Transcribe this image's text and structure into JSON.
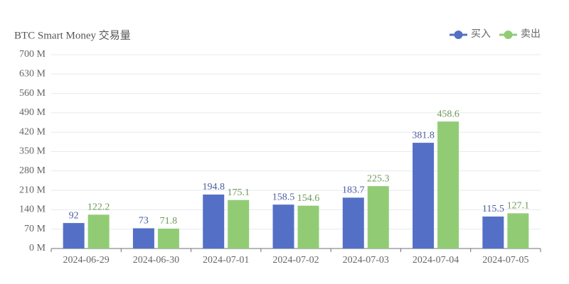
{
  "chart_data": {
    "type": "bar",
    "title": "BTC Smart Money 交易量",
    "categories": [
      "2024-06-29",
      "2024-06-30",
      "2024-07-01",
      "2024-07-02",
      "2024-07-03",
      "2024-07-04",
      "2024-07-05"
    ],
    "series": [
      {
        "name": "买入",
        "color": "#5470c6",
        "values": [
          92,
          73,
          194.8,
          158.5,
          183.7,
          381.8,
          115.5
        ]
      },
      {
        "name": "卖出",
        "color": "#91cc75",
        "values": [
          122.2,
          71.8,
          175.1,
          154.6,
          225.3,
          458.6,
          127.1
        ]
      }
    ],
    "ylim": [
      0,
      700
    ],
    "yticks": [
      {
        "value": 0,
        "label": "0 M"
      },
      {
        "value": 70,
        "label": "70 M"
      },
      {
        "value": 140,
        "label": "140 M"
      },
      {
        "value": 210,
        "label": "210 M"
      },
      {
        "value": 280,
        "label": "280 M"
      },
      {
        "value": 350,
        "label": "350 M"
      },
      {
        "value": 420,
        "label": "420 M"
      },
      {
        "value": 490,
        "label": "490 M"
      },
      {
        "value": 560,
        "label": "560 M"
      },
      {
        "value": 630,
        "label": "630 M"
      },
      {
        "value": 700,
        "label": "700 M"
      }
    ],
    "grid": true,
    "legend": "top-right"
  }
}
